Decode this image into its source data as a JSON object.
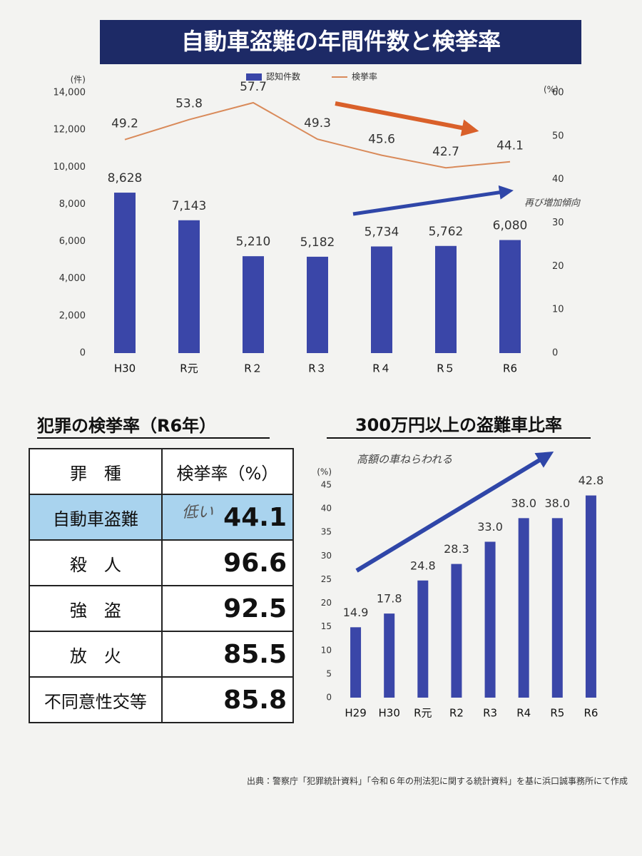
{
  "chart_data": [
    {
      "type": "combo",
      "title": "自動車盗難の年間件数と検挙率",
      "y_label": "(件)",
      "y2_label": "(%)",
      "categories": [
        "H30",
        "R元",
        "R２",
        "R３",
        "R４",
        "R５",
        "R6"
      ],
      "series": [
        {
          "name": "認知件数",
          "type": "bar",
          "color": "#3a46a8",
          "values": [
            8628,
            7143,
            5210,
            5182,
            5734,
            5762,
            6080
          ],
          "value_labels": [
            "8,628",
            "7,143",
            "5,210",
            "5,182",
            "5,734",
            "5,762",
            "6,080"
          ]
        },
        {
          "name": "検挙率",
          "type": "line",
          "axis": "y2",
          "color": "#d98a5a",
          "values": [
            49.2,
            53.8,
            57.7,
            49.3,
            45.6,
            42.7,
            44.1
          ]
        }
      ],
      "ylim": [
        0,
        14000
      ],
      "yticks": [
        0,
        {
          "value": 2000,
          "label": "2,000"
        },
        {
          "value": 4000,
          "label": "4,000"
        },
        {
          "value": 6000,
          "label": "6,000"
        },
        {
          "value": 8000,
          "label": "8,000"
        },
        {
          "value": 10000,
          "label": "10,000"
        },
        {
          "value": 12000,
          "label": "12,000"
        },
        {
          "value": 14000,
          "label": "14,000"
        }
      ],
      "y2lim": [
        0,
        60
      ],
      "y2ticks": [
        0,
        10,
        20,
        30,
        40,
        50,
        60
      ],
      "legend": "top",
      "annotations": [
        "再び増加傾向"
      ]
    },
    {
      "type": "bar",
      "title": "300万円以上の盗難車比率",
      "y_label": "(%)",
      "categories": [
        "H29",
        "H30",
        "R元",
        "R2",
        "R3",
        "R4",
        "R5",
        "R6"
      ],
      "values": [
        14.9,
        17.8,
        24.8,
        28.3,
        33.0,
        38.0,
        38.0,
        42.8
      ],
      "value_labels": [
        "14.9",
        "17.8",
        "24.8",
        "28.3",
        "33.0",
        "38.0",
        "38.0",
        "42.8"
      ],
      "color": "#3a46a8",
      "ylim": [
        0,
        45
      ],
      "yticks": [
        0,
        5,
        10,
        15,
        20,
        25,
        30,
        35,
        40,
        45
      ],
      "annotations": [
        "高額の車ねらわれる"
      ]
    }
  ],
  "table": {
    "title": "犯罪の検挙率（R6年）",
    "header": [
      "罪　種",
      "検挙率（%）"
    ],
    "rows": [
      [
        "自動車盗難",
        "44.1"
      ],
      [
        "殺　人",
        "96.6"
      ],
      [
        "強　盗",
        "92.5"
      ],
      [
        "放　火",
        "85.5"
      ],
      [
        "不同意性交等",
        "85.8"
      ]
    ],
    "annotation": "低い"
  },
  "source": "出典：警察庁「犯罪統計資料」「令和６年の刑法犯に関する統計資料」を基に浜口誠事務所にて作成"
}
